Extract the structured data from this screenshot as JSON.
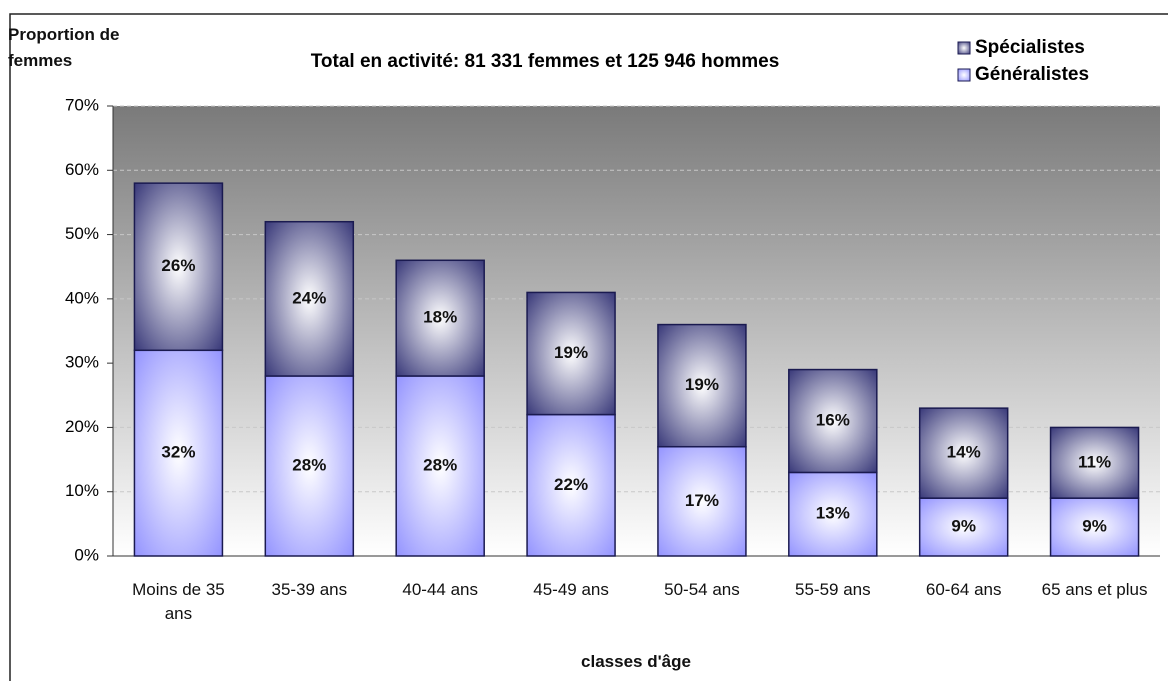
{
  "chart_data": {
    "type": "stacked_bar",
    "title": "Total en activité: 81 331 femmes et 125 946 hommes",
    "y_label": "Proportion de femmes",
    "x_label": "classes d'âge",
    "categories": [
      "Moins de 35 ans",
      "35-39 ans",
      "40-44 ans",
      "45-49 ans",
      "50-54 ans",
      "55-59 ans",
      "60-64 ans",
      "65 ans et plus"
    ],
    "series": [
      {
        "name": "Généralistes",
        "color": "#8c8cff",
        "values": [
          32,
          28,
          28,
          22,
          17,
          13,
          9,
          9
        ],
        "value_labels": [
          "32%",
          "28%",
          "28%",
          "22%",
          "17%",
          "13%",
          "9%",
          "9%"
        ]
      },
      {
        "name": "Spécialistes",
        "color": "#2b2b70",
        "values": [
          26,
          24,
          18,
          19,
          19,
          16,
          14,
          11
        ],
        "value_labels": [
          "26%",
          "24%",
          "18%",
          "19%",
          "19%",
          "16%",
          "14%",
          "11%"
        ]
      }
    ],
    "ylim": [
      0,
      70
    ],
    "yticks": [
      {
        "value": 0,
        "label": "0%"
      },
      {
        "value": 10,
        "label": "10%"
      },
      {
        "value": 20,
        "label": "20%"
      },
      {
        "value": 30,
        "label": "30%"
      },
      {
        "value": 40,
        "label": "40%"
      },
      {
        "value": 50,
        "label": "50%"
      },
      {
        "value": 60,
        "label": "60%"
      },
      {
        "value": 70,
        "label": "70%"
      }
    ],
    "grid": true,
    "legend": "top-right"
  }
}
